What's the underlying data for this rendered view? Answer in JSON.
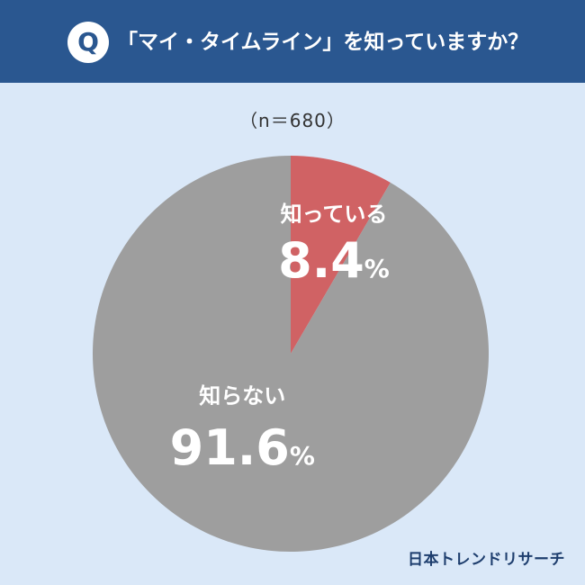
{
  "header": {
    "badge": "Q",
    "title": "「マイ・タイムライン」を知っていますか？"
  },
  "sample_size": "（n＝680）",
  "brand": "日本トレンドリサーチ",
  "colors": {
    "header_bg": "#2a5790",
    "background": "#dae8f8",
    "know": "#d06264",
    "dont_know": "#9e9e9e"
  },
  "chart_data": {
    "type": "pie",
    "title": "「マイ・タイムライン」を知っていますか？",
    "slices": [
      {
        "name": "知っている",
        "value": 8.4,
        "label": "8.4",
        "unit": "%",
        "color": "#d06264"
      },
      {
        "name": "知らない",
        "value": 91.6,
        "label": "91.6",
        "unit": "%",
        "color": "#9e9e9e"
      }
    ]
  }
}
